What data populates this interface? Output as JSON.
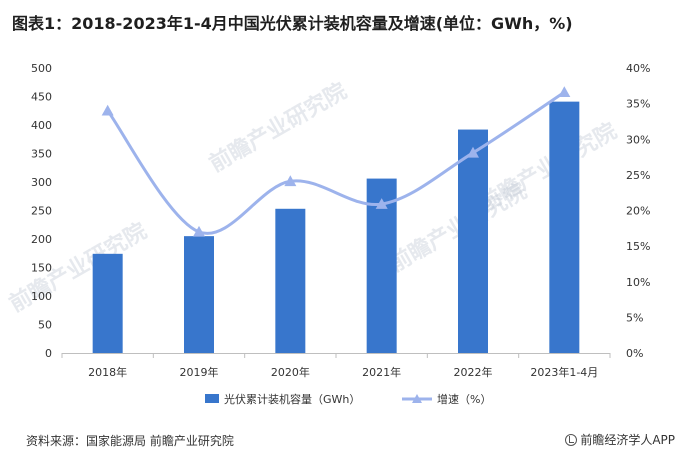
{
  "title": "图表1：2018-2023年1-4月中国光伏累计装机容量及增速(单位：GWh，%)",
  "source": "资料来源：国家能源局 前瞻产业研究院",
  "brand": "前瞻经济学人APP",
  "watermark": "前瞻产业研究院",
  "colors": {
    "bar": "#3876cc",
    "line": "#9db3ec",
    "axis": "#bfbfbf"
  },
  "chart_data": {
    "type": "bar",
    "categories": [
      "2018年",
      "2019年",
      "2020年",
      "2021年",
      "2022年",
      "2023年1-4月"
    ],
    "series": [
      {
        "name": "光伏累计装机容量（GWh）",
        "type": "bar",
        "axis": "left",
        "values": [
          174,
          205,
          253,
          306,
          392,
          441
        ]
      },
      {
        "name": "增速（%）",
        "type": "line",
        "axis": "right",
        "smooth": true,
        "values": [
          34.0,
          17.0,
          24.1,
          20.9,
          28.1,
          36.6
        ]
      }
    ],
    "yleft": {
      "min": 0,
      "max": 500,
      "step": 50,
      "ticks": [
        "0",
        "50",
        "100",
        "150",
        "200",
        "250",
        "300",
        "350",
        "400",
        "450",
        "500"
      ]
    },
    "yright": {
      "min": 0,
      "max": 40,
      "step": 5,
      "ticks": [
        "0%",
        "5%",
        "10%",
        "15%",
        "20%",
        "25%",
        "30%",
        "35%",
        "40%"
      ]
    },
    "legend": "bottom",
    "grid": false
  }
}
